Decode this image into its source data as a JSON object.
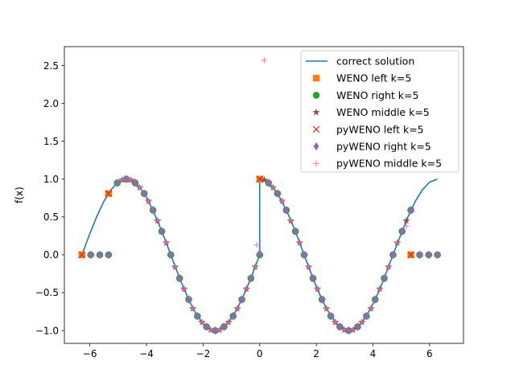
{
  "chart_data": {
    "type": "scatter",
    "title": "",
    "xlabel": "",
    "ylabel": "f(x)",
    "xlim": [
      -6.9,
      7.2
    ],
    "ylim": [
      -1.17,
      2.75
    ],
    "xticks": [
      -6,
      -4,
      -2,
      0,
      2,
      4,
      6
    ],
    "yticks": [
      -1.0,
      -0.5,
      0.0,
      0.5,
      1.0,
      1.5,
      2.0,
      2.5
    ],
    "xtick_labels": [
      "−6",
      "−4",
      "−2",
      "0",
      "2",
      "4",
      "6"
    ],
    "ytick_labels": [
      "−1.0",
      "−0.5",
      "0.0",
      "0.5",
      "1.0",
      "1.5",
      "2.0",
      "2.5"
    ],
    "grid": false,
    "legend_position": "upper right",
    "series": [
      {
        "name": "correct solution",
        "kind": "line",
        "color": "#1f77b4",
        "x": [
          -6.28,
          -6.0,
          -5.75,
          -5.5,
          -5.25,
          -5.0,
          -4.71,
          -4.5,
          -4.25,
          -4.0,
          -3.75,
          -3.5,
          -3.25,
          -3.0,
          -2.75,
          -2.5,
          -2.25,
          -2.0,
          -1.75,
          -1.57,
          -1.25,
          -1.0,
          -0.75,
          -0.5,
          -0.25,
          0.0,
          0.0,
          0.25,
          0.5,
          0.75,
          1.0,
          1.25,
          1.5,
          1.75,
          2.0,
          2.25,
          2.5,
          2.75,
          3.14,
          3.5,
          3.75,
          4.0,
          4.25,
          4.5,
          4.75,
          5.0,
          5.25,
          5.5,
          5.75,
          6.0,
          6.28
        ],
        "y": [
          0.0,
          0.28,
          0.51,
          0.71,
          0.86,
          0.96,
          1.0,
          0.98,
          0.9,
          0.76,
          0.57,
          0.35,
          0.11,
          -0.14,
          -0.38,
          -0.6,
          -0.78,
          -0.91,
          -0.98,
          -1.0,
          -0.95,
          -0.84,
          -0.68,
          -0.48,
          -0.25,
          0.0,
          1.0,
          0.97,
          0.88,
          0.73,
          0.54,
          0.32,
          0.07,
          -0.18,
          -0.42,
          -0.63,
          -0.8,
          -0.92,
          -1.0,
          -0.94,
          -0.82,
          -0.65,
          -0.45,
          -0.21,
          0.04,
          0.28,
          0.51,
          0.71,
          0.86,
          0.96,
          1.0
        ]
      },
      {
        "name": "WENO left k=5",
        "kind": "marker",
        "marker": "square",
        "color": "#ff7f0e",
        "x": [
          -6.28,
          -5.34,
          0.0,
          5.34
        ],
        "y": [
          0.0,
          0.81,
          1.0,
          0.0
        ]
      },
      {
        "name": "WENO right k=5",
        "kind": "marker",
        "marker": "circle",
        "color": "#2ca02c",
        "x": [
          -6.28,
          -5.97,
          -5.65,
          -5.34,
          -5.03,
          -4.71,
          -4.4,
          -4.08,
          -3.77,
          -3.46,
          -3.14,
          -2.83,
          -2.51,
          -2.2,
          -1.88,
          -1.57,
          -1.26,
          -0.94,
          -0.63,
          -0.31,
          0.0,
          0.31,
          0.63,
          0.94,
          1.26,
          1.57,
          1.88,
          2.2,
          2.51,
          2.83,
          3.14,
          3.46,
          3.77,
          4.08,
          4.4,
          4.71,
          5.03,
          5.34,
          5.65,
          5.97,
          6.28
        ],
        "y": [
          0.0,
          0.0,
          0.0,
          0.0,
          0.95,
          1.0,
          0.95,
          0.81,
          0.59,
          0.31,
          0.0,
          -0.31,
          -0.59,
          -0.81,
          -0.95,
          -1.0,
          -0.95,
          -0.81,
          -0.59,
          -0.31,
          0.0,
          0.95,
          0.81,
          0.59,
          0.31,
          0.0,
          -0.31,
          -0.59,
          -0.81,
          -0.95,
          -1.0,
          -0.95,
          -0.81,
          -0.59,
          -0.31,
          0.0,
          0.31,
          0.59,
          0.0,
          0.0,
          0.0
        ]
      },
      {
        "name": "WENO middle k=5",
        "kind": "marker",
        "marker": "star",
        "color": "#8c564b",
        "x": [
          -4.86,
          -4.55,
          -4.24,
          -3.93,
          -3.61,
          -3.3,
          -2.99,
          -2.67,
          -2.36,
          -2.04,
          -1.73,
          -1.41,
          -1.1,
          -0.79,
          -0.47,
          -0.16,
          0.16,
          0.47,
          0.79,
          1.1,
          1.41,
          1.73,
          2.04,
          2.36,
          2.67,
          2.99,
          3.3,
          3.61,
          3.93,
          4.24,
          4.55,
          4.86,
          5.18
        ],
        "y": [
          0.99,
          0.99,
          0.89,
          0.71,
          0.45,
          0.16,
          -0.16,
          -0.45,
          -0.71,
          -0.89,
          -0.99,
          -0.99,
          -0.89,
          -0.71,
          -0.45,
          -0.16,
          0.99,
          0.89,
          0.71,
          0.45,
          0.16,
          -0.16,
          -0.45,
          -0.71,
          -0.89,
          -0.99,
          -0.99,
          -0.89,
          -0.71,
          -0.45,
          -0.16,
          0.16,
          0.45
        ]
      },
      {
        "name": "pyWENO left k=5",
        "kind": "marker",
        "marker": "x",
        "color": "#d62728",
        "x": [
          -6.28,
          -5.34,
          0.0,
          5.34
        ],
        "y": [
          0.0,
          0.81,
          1.0,
          0.0
        ]
      },
      {
        "name": "pyWENO right k=5",
        "kind": "marker",
        "marker": "thin_diamond",
        "color": "#9467bd",
        "x": [
          -5.97,
          -5.65,
          -5.34,
          -5.03,
          -4.71,
          -4.4,
          -4.08,
          -3.77,
          -3.46,
          -3.14,
          -2.83,
          -2.51,
          -2.2,
          -1.88,
          -1.57,
          -1.26,
          -0.94,
          -0.63,
          -0.31,
          0.0,
          0.31,
          0.63,
          0.94,
          1.26,
          1.57,
          1.88,
          2.2,
          2.51,
          2.83,
          3.14,
          3.46,
          3.77,
          4.08,
          4.4,
          4.71,
          5.03,
          5.34,
          5.65,
          5.97,
          6.28
        ],
        "y": [
          0.0,
          0.0,
          0.0,
          0.95,
          1.0,
          0.95,
          0.81,
          0.59,
          0.31,
          0.0,
          -0.31,
          -0.59,
          -0.81,
          -0.95,
          -1.0,
          -0.95,
          -0.81,
          -0.59,
          -0.31,
          0.02,
          0.95,
          0.81,
          0.59,
          0.31,
          0.0,
          -0.31,
          -0.59,
          -0.81,
          -0.95,
          -1.0,
          -0.95,
          -0.81,
          -0.59,
          -0.31,
          0.0,
          0.31,
          0.59,
          0.0,
          0.0,
          0.0
        ]
      },
      {
        "name": "pyWENO middle k=5",
        "kind": "marker",
        "marker": "plus",
        "color": "#e377c2",
        "x": [
          -4.86,
          -4.55,
          -4.24,
          -3.93,
          -3.61,
          -3.3,
          -2.99,
          -2.67,
          -2.36,
          -2.04,
          -1.73,
          -1.41,
          -1.1,
          -0.79,
          -0.47,
          -0.16,
          0.16,
          0.47,
          0.79,
          1.1,
          1.41,
          1.73,
          2.04,
          2.36,
          2.67,
          2.99,
          3.3,
          3.61,
          3.93,
          4.24,
          4.55,
          4.86,
          5.18,
          -0.1
        ],
        "y": [
          0.99,
          0.99,
          0.89,
          0.71,
          0.45,
          0.16,
          -0.16,
          -0.45,
          -0.71,
          -0.89,
          -0.99,
          -0.99,
          -0.89,
          -0.71,
          -0.45,
          -0.16,
          2.57,
          0.89,
          0.71,
          0.45,
          0.16,
          -0.16,
          -0.45,
          -0.71,
          -0.89,
          -0.99,
          -0.99,
          -0.89,
          -0.71,
          -0.45,
          -0.16,
          0.16,
          0.38,
          0.13
        ]
      }
    ]
  }
}
